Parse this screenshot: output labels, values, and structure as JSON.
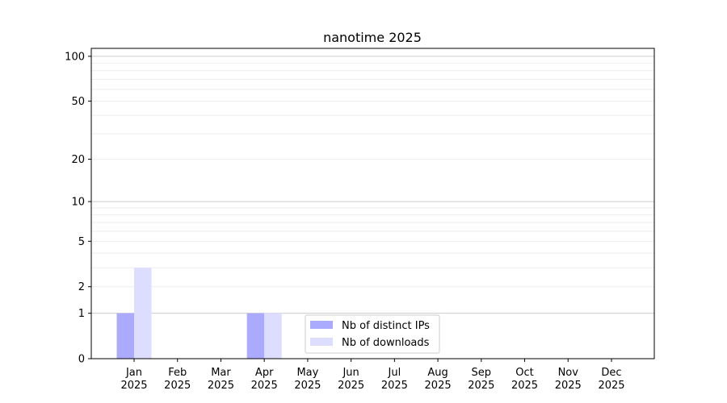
{
  "chart_data": {
    "type": "bar",
    "title": "nanotime 2025",
    "xlabel": "",
    "ylabel": "",
    "yscale": "log(1+y)",
    "ylim": [
      0,
      113
    ],
    "yticks": [
      0,
      1,
      2,
      5,
      10,
      20,
      50,
      100
    ],
    "ytick_labels": [
      "0",
      "1",
      "2",
      "5",
      "10",
      "20",
      "50",
      "100"
    ],
    "grid": true,
    "legend_position": "lower-center",
    "categories": [
      "Jan\n2025",
      "Feb\n2025",
      "Mar\n2025",
      "Apr\n2025",
      "May\n2025",
      "Jun\n2025",
      "Jul\n2025",
      "Aug\n2025",
      "Sep\n2025",
      "Oct\n2025",
      "Nov\n2025",
      "Dec\n2025"
    ],
    "series": [
      {
        "name": "Nb of distinct IPs",
        "color": "#aaaaff",
        "values": [
          1,
          0,
          0,
          1,
          0,
          0,
          0,
          0,
          0,
          0,
          0,
          0
        ]
      },
      {
        "name": "Nb of downloads",
        "color": "#ddddff",
        "values": [
          3,
          0,
          0,
          1,
          0,
          0,
          0,
          0,
          0,
          0,
          0,
          0
        ]
      }
    ]
  }
}
